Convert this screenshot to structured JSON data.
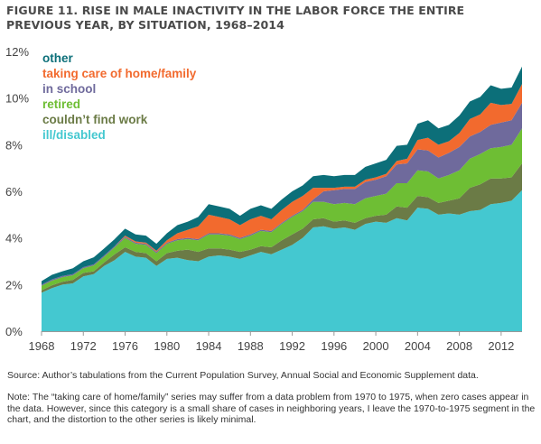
{
  "title": "FIGURE 11. RISE IN MALE INACTIVITY IN THE LABOR FORCE THE ENTIRE PREVIOUS YEAR, BY SITUATION, 1968–2014",
  "source": "Source: Author’s tabulations from the Current Population Survey, Annual Social and Economic Supplement data.",
  "note": "Note: The “taking care of home/family” series may suffer from a data problem from 1970 to 1975, when zero cases appear in the data. However, since this category is a small share of cases in neighboring years, I leave the 1970-to-1975 segment in the chart, and the distortion to the other series is likely minimal.",
  "chart_data": {
    "type": "area",
    "stacked": true,
    "legend_placement": "top-left",
    "grid": false,
    "xlim": [
      1968,
      2014
    ],
    "ylim": [
      0,
      12
    ],
    "x_ticks": [
      "1968",
      "1972",
      "1976",
      "1980",
      "1984",
      "1988",
      "1992",
      "1996",
      "2000",
      "2004",
      "2008",
      "2012"
    ],
    "y_ticks": [
      "0%",
      "2%",
      "4%",
      "6%",
      "8%",
      "10%",
      "12%"
    ],
    "x": [
      1968,
      1969,
      1970,
      1971,
      1972,
      1973,
      1974,
      1975,
      1976,
      1977,
      1978,
      1979,
      1980,
      1981,
      1982,
      1983,
      1984,
      1985,
      1986,
      1987,
      1988,
      1989,
      1990,
      1991,
      1992,
      1993,
      1994,
      1995,
      1996,
      1997,
      1998,
      1999,
      2000,
      2001,
      2002,
      2003,
      2004,
      2005,
      2006,
      2007,
      2008,
      2009,
      2010,
      2011,
      2012,
      2013,
      2014
    ],
    "series": [
      {
        "name": "ill/disabled",
        "color": "#44c8d0",
        "values": [
          1.65,
          1.85,
          2.0,
          2.05,
          2.35,
          2.45,
          2.8,
          3.05,
          3.4,
          3.2,
          3.15,
          2.8,
          3.1,
          3.15,
          3.05,
          3.0,
          3.2,
          3.25,
          3.2,
          3.1,
          3.25,
          3.4,
          3.3,
          3.5,
          3.7,
          4.0,
          4.45,
          4.5,
          4.4,
          4.45,
          4.35,
          4.6,
          4.7,
          4.65,
          4.85,
          4.75,
          5.3,
          5.25,
          5.0,
          5.05,
          5.0,
          5.15,
          5.2,
          5.45,
          5.5,
          5.6,
          6.05
        ]
      },
      {
        "name": "couldn’t find work",
        "color": "#6b7b46",
        "values": [
          0.1,
          0.12,
          0.12,
          0.15,
          0.15,
          0.12,
          0.15,
          0.25,
          0.2,
          0.2,
          0.2,
          0.2,
          0.25,
          0.3,
          0.45,
          0.4,
          0.35,
          0.3,
          0.3,
          0.3,
          0.25,
          0.25,
          0.3,
          0.4,
          0.45,
          0.4,
          0.35,
          0.35,
          0.3,
          0.3,
          0.3,
          0.25,
          0.25,
          0.35,
          0.5,
          0.55,
          0.5,
          0.5,
          0.5,
          0.55,
          0.7,
          1.0,
          1.1,
          1.1,
          1.05,
          1.0,
          1.15
        ]
      },
      {
        "name": "retired",
        "color": "#6ebe34",
        "values": [
          0.2,
          0.2,
          0.2,
          0.2,
          0.2,
          0.25,
          0.25,
          0.3,
          0.4,
          0.35,
          0.35,
          0.35,
          0.4,
          0.45,
          0.45,
          0.5,
          0.6,
          0.6,
          0.6,
          0.55,
          0.6,
          0.65,
          0.65,
          0.7,
          0.75,
          0.75,
          0.75,
          0.7,
          0.75,
          0.75,
          0.8,
          0.85,
          0.85,
          0.9,
          1.0,
          1.05,
          1.1,
          1.1,
          1.05,
          1.1,
          1.2,
          1.25,
          1.3,
          1.3,
          1.35,
          1.4,
          1.5
        ]
      },
      {
        "name": "in school",
        "color": "#6f6a9c",
        "values": [
          0.05,
          0.05,
          0.05,
          0.05,
          0.05,
          0.05,
          0.05,
          0.05,
          0.05,
          0.05,
          0.05,
          0.05,
          0.05,
          0.05,
          0.05,
          0.05,
          0.05,
          0.05,
          0.05,
          0.05,
          0.05,
          0.05,
          0.05,
          0.05,
          0.05,
          0.05,
          0.1,
          0.45,
          0.6,
          0.6,
          0.65,
          0.7,
          0.7,
          0.75,
          0.8,
          0.85,
          0.9,
          0.9,
          0.9,
          0.95,
          1.0,
          0.95,
          0.95,
          1.0,
          1.05,
          1.05,
          1.1
        ]
      },
      {
        "name": "taking care of home/family",
        "color": "#f26a2e",
        "values": [
          0.0,
          0.0,
          0.0,
          0.0,
          0.0,
          0.0,
          0.0,
          0.0,
          0.05,
          0.05,
          0.05,
          0.05,
          0.1,
          0.25,
          0.35,
          0.55,
          0.8,
          0.7,
          0.65,
          0.55,
          0.65,
          0.6,
          0.5,
          0.55,
          0.6,
          0.6,
          0.5,
          0.15,
          0.1,
          0.1,
          0.1,
          0.1,
          0.1,
          0.1,
          0.15,
          0.2,
          0.4,
          0.55,
          0.55,
          0.5,
          0.6,
          0.75,
          0.75,
          0.95,
          0.75,
          0.7,
          0.8
        ]
      },
      {
        "name": "other",
        "color": "#0c6f79",
        "values": [
          0.15,
          0.2,
          0.2,
          0.25,
          0.25,
          0.3,
          0.3,
          0.3,
          0.3,
          0.3,
          0.3,
          0.3,
          0.3,
          0.35,
          0.35,
          0.4,
          0.45,
          0.45,
          0.45,
          0.4,
          0.45,
          0.45,
          0.45,
          0.45,
          0.45,
          0.45,
          0.5,
          0.55,
          0.5,
          0.5,
          0.5,
          0.55,
          0.6,
          0.6,
          0.65,
          0.6,
          0.7,
          0.75,
          0.7,
          0.7,
          0.75,
          0.75,
          0.75,
          0.75,
          0.7,
          0.7,
          0.75
        ]
      }
    ]
  }
}
